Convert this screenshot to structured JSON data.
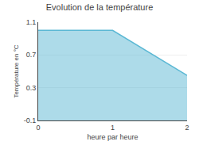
{
  "chart_data": {
    "type": "area",
    "title": "Evolution de la température",
    "xlabel": "heure par heure",
    "ylabel": "Température en °C",
    "x": [
      0,
      1,
      2
    ],
    "values": [
      1.0,
      1.0,
      0.45
    ],
    "color": "#5bb8d4",
    "xlim": [
      0,
      2
    ],
    "xticks": [
      0,
      1,
      2
    ],
    "ylim": [
      -0.1,
      1.1
    ],
    "yticks": [
      -0.1,
      0.3,
      0.7,
      1.1
    ],
    "grid": true
  }
}
